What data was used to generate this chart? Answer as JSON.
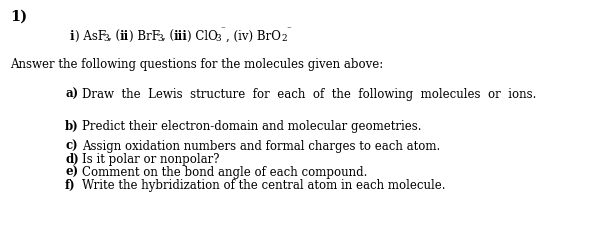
{
  "background_color": "#ffffff",
  "fig_width": 6.1,
  "fig_height": 2.45,
  "dpi": 100,
  "fs_main": 8.5,
  "fs_bold1": 10.5,
  "fs_sub_label": 8.5,
  "line1_text": "1)",
  "answer_intro": "Answer the following questions for the molecules given above:",
  "item_a_text": "Draw  the  Lewis  structure  for  each  of  the  following  molecules  or  ions.",
  "item_b_text": "Predict their electron-domain and molecular geometries.",
  "item_c_text": "Assign oxidation numbers and formal charges to each atom.",
  "item_d_text": "Is it polar or nonpolar?",
  "item_e_text": "Comment on the bond angle of each compound.",
  "item_f_text": "Write the hybridization of the central atom in each molecule."
}
